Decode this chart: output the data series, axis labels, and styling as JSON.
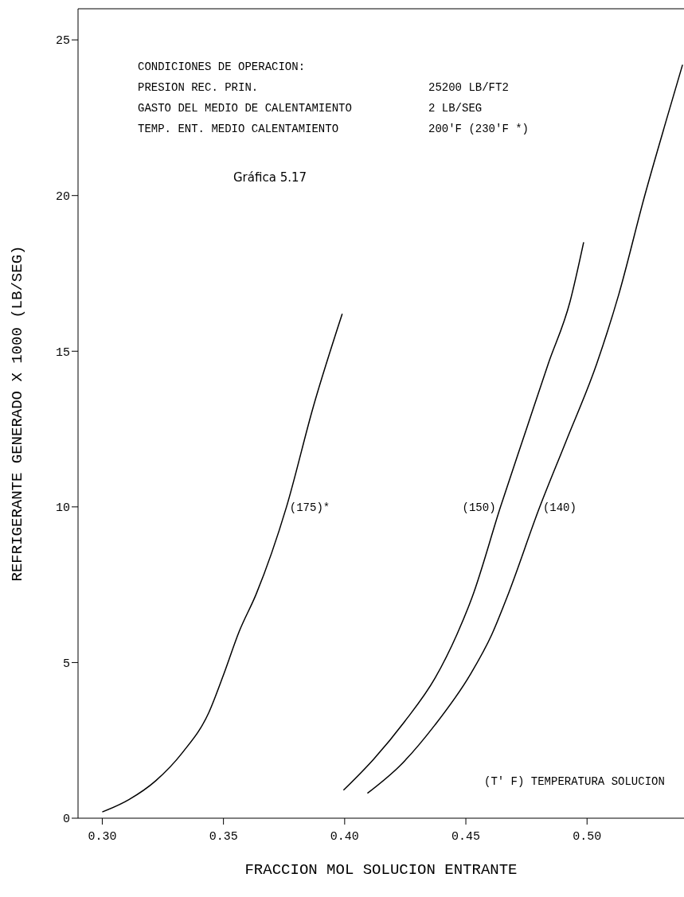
{
  "chart_data": {
    "type": "line",
    "xlabel": "FRACCION MOL SOLUCION ENTRANTE",
    "ylabel": "REFRIGERANTE GENERADO X 1000 (LB/SEG)",
    "xlim": [
      0.29,
      0.54
    ],
    "ylim": [
      0,
      26
    ],
    "xticks": [
      {
        "value": 0.3,
        "label": "0.30"
      },
      {
        "value": 0.35,
        "label": "0.35"
      },
      {
        "value": 0.4,
        "label": "0.40"
      },
      {
        "value": 0.45,
        "label": "0.45"
      },
      {
        "value": 0.5,
        "label": "0.50"
      }
    ],
    "yticks": [
      0,
      5,
      10,
      15,
      20,
      25
    ],
    "grid": false,
    "legend": false,
    "marker": "none",
    "line_style": "solid",
    "annotations": [
      "CONDICIONES DE OPERACION:",
      "PRESION REC. PRIN.",
      "25200 LB/FT2",
      "GASTO DEL MEDIO DE CALENTAMIENTO",
      "2 LB/SEG",
      "TEMP. ENT. MEDIO CALENTAMIENTO",
      "200'F (230'F *)",
      "Gráfica 5.17",
      "(T' F) TEMPERATURA SOLUCION"
    ],
    "series": [
      {
        "name": "(175)*",
        "color": "#000000",
        "x": [
          0.3,
          0.311,
          0.322,
          0.333,
          0.344,
          0.35,
          0.3565,
          0.3635,
          0.376,
          0.387,
          0.399
        ],
        "values": [
          0.2,
          0.6,
          1.2,
          2.1,
          3.4,
          4.6,
          6.0,
          7.2,
          10.0,
          13.2,
          16.2
        ]
      },
      {
        "name": "(150)",
        "color": "#000000",
        "x": [
          0.3995,
          0.412,
          0.4247,
          0.4373,
          0.4463,
          0.4526,
          0.4643,
          0.475,
          0.484,
          0.493,
          0.4986
        ],
        "values": [
          0.9,
          1.9,
          3.1,
          4.5,
          5.9,
          7.1,
          10.0,
          12.5,
          14.6,
          16.6,
          18.5
        ]
      },
      {
        "name": "(140)",
        "color": "#000000",
        "x": [
          0.4094,
          0.423,
          0.4373,
          0.4517,
          0.4607,
          0.467,
          0.4805,
          0.4913,
          0.504,
          0.513,
          0.5238,
          0.533,
          0.5394
        ],
        "values": [
          0.8,
          1.7,
          3.0,
          4.6,
          5.9,
          7.1,
          10.0,
          12.1,
          14.6,
          16.8,
          20.0,
          22.5,
          24.2
        ]
      }
    ]
  }
}
